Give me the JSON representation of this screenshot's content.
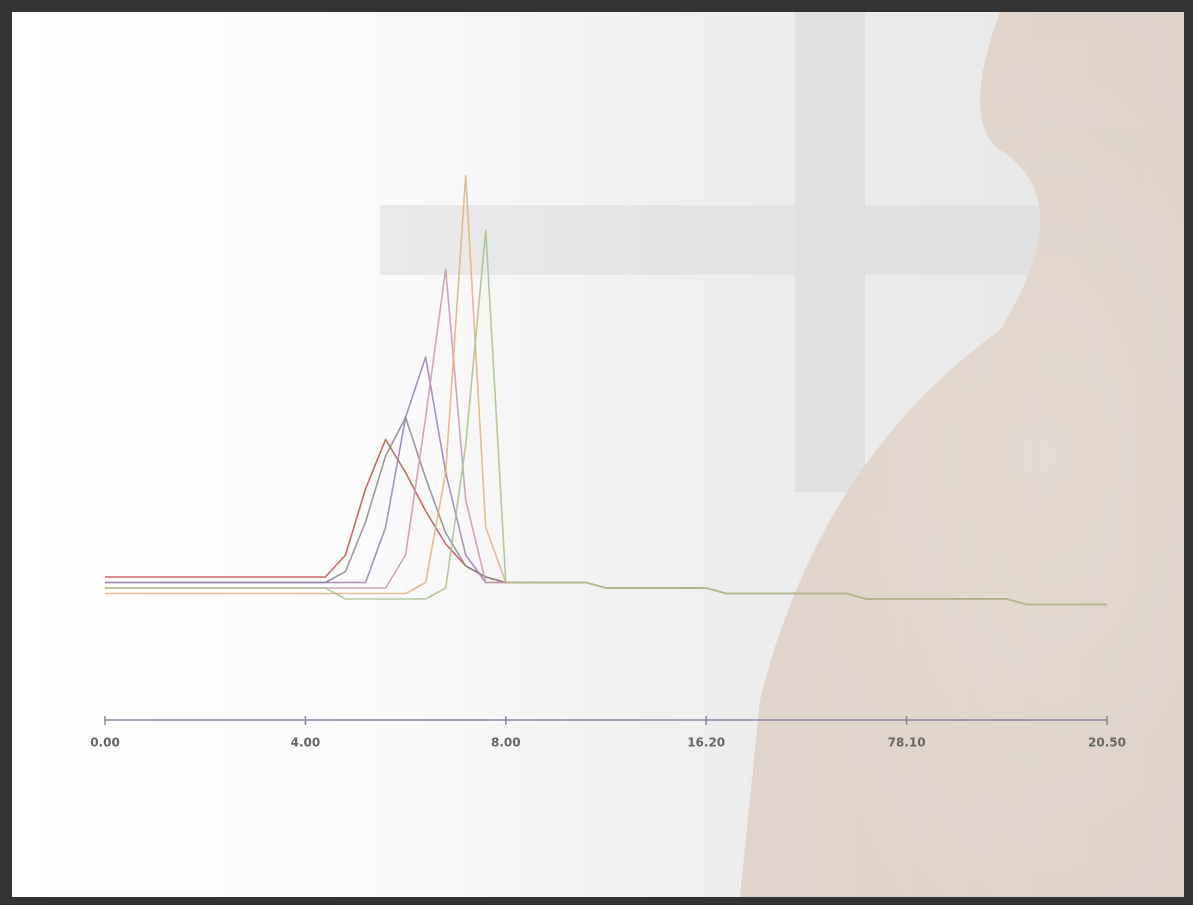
{
  "chart_data": {
    "type": "line",
    "x": [
      0,
      1,
      2,
      3,
      4,
      5,
      6,
      7,
      8,
      9,
      10,
      11,
      12,
      13,
      14,
      15,
      16,
      17,
      18,
      19,
      20,
      21,
      22,
      23,
      24,
      25,
      26,
      27,
      28,
      29,
      30,
      31,
      32,
      33,
      34,
      35,
      36,
      37,
      38,
      39,
      40,
      41,
      42,
      43,
      44,
      45,
      46,
      47,
      48,
      49,
      50
    ],
    "xlim": [
      0,
      50
    ],
    "xticks": [
      {
        "value": 0,
        "label": "0.00"
      },
      {
        "value": 10,
        "label": "4.00"
      },
      {
        "value": 20,
        "label": "8.00"
      },
      {
        "value": 30,
        "label": "16.20"
      },
      {
        "value": 40,
        "label": "78.10"
      },
      {
        "value": 50,
        "label": "20.50"
      }
    ],
    "ylim": [
      0,
      100
    ],
    "series": [
      {
        "color": "#c0504d",
        "values": [
          26,
          26,
          26,
          26,
          26,
          26,
          26,
          26,
          26,
          26,
          26,
          26,
          30,
          42,
          51,
          45,
          38,
          32,
          28,
          26,
          25,
          25,
          25,
          25,
          25,
          24,
          24,
          24,
          24,
          24,
          24,
          23,
          23,
          23,
          23,
          23,
          23,
          23,
          22,
          22,
          22,
          22,
          22,
          22,
          22,
          22,
          21,
          21,
          21,
          21,
          21
        ]
      },
      {
        "color": "#8a8a8a",
        "values": [
          25,
          25,
          25,
          25,
          25,
          25,
          25,
          25,
          25,
          25,
          25,
          25,
          27,
          36,
          48,
          55,
          44,
          34,
          28,
          26,
          25,
          25,
          25,
          25,
          25,
          24,
          24,
          24,
          24,
          24,
          24,
          23,
          23,
          23,
          23,
          23,
          23,
          23,
          22,
          22,
          22,
          22,
          22,
          22,
          22,
          22,
          21,
          21,
          21,
          21,
          21
        ]
      },
      {
        "color": "#9b7fb0",
        "values": [
          25,
          25,
          25,
          25,
          25,
          25,
          25,
          25,
          25,
          25,
          25,
          25,
          25,
          25,
          35,
          55,
          66,
          45,
          30,
          25,
          25,
          25,
          25,
          25,
          25,
          24,
          24,
          24,
          24,
          24,
          24,
          23,
          23,
          23,
          23,
          23,
          23,
          23,
          22,
          22,
          22,
          22,
          22,
          22,
          22,
          22,
          21,
          21,
          21,
          21,
          21
        ]
      },
      {
        "color": "#c49aa8",
        "values": [
          24,
          24,
          24,
          24,
          24,
          24,
          24,
          24,
          24,
          24,
          24,
          24,
          24,
          24,
          24,
          30,
          55,
          82,
          40,
          25,
          25,
          25,
          25,
          25,
          25,
          24,
          24,
          24,
          24,
          24,
          24,
          23,
          23,
          23,
          23,
          23,
          23,
          23,
          22,
          22,
          22,
          22,
          22,
          22,
          22,
          22,
          21,
          21,
          21,
          21,
          21
        ]
      },
      {
        "color": "#e0b080",
        "values": [
          23,
          23,
          23,
          23,
          23,
          23,
          23,
          23,
          23,
          23,
          23,
          23,
          23,
          23,
          23,
          23,
          25,
          45,
          99,
          35,
          25,
          25,
          25,
          25,
          25,
          24,
          24,
          24,
          24,
          24,
          24,
          23,
          23,
          23,
          23,
          23,
          23,
          23,
          22,
          22,
          22,
          22,
          22,
          22,
          22,
          22,
          21,
          21,
          21,
          21,
          21
        ]
      },
      {
        "color": "#a8c090",
        "values": [
          24,
          24,
          24,
          24,
          24,
          24,
          24,
          24,
          24,
          24,
          24,
          24,
          22,
          22,
          22,
          22,
          22,
          24,
          50,
          89,
          25,
          25,
          25,
          25,
          25,
          24,
          24,
          24,
          24,
          24,
          24,
          23,
          23,
          23,
          23,
          23,
          23,
          23,
          22,
          22,
          22,
          22,
          22,
          22,
          22,
          22,
          21,
          21,
          21,
          21,
          21
        ]
      }
    ]
  }
}
